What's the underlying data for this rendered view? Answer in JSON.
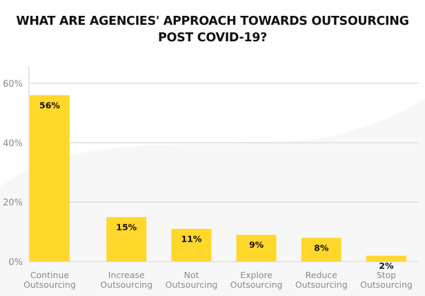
{
  "chart_data": {
    "type": "bar",
    "title": [
      "WHAT ARE AGENCIES' APPROACH TOWARDS OUTSOURCING",
      "POST COVID-19?"
    ],
    "xlabel": "",
    "ylabel": "",
    "categories": [
      [
        "Continue",
        "Outsourcing"
      ],
      [
        "Increase",
        "Outsourcing"
      ],
      [
        "Not",
        "Outsourcing"
      ],
      [
        "Explore",
        "Outsourcing"
      ],
      [
        "Reduce",
        "Outsourcing"
      ],
      [
        "Stop",
        "Outsourcing"
      ]
    ],
    "values": [
      56,
      15,
      11,
      9,
      8,
      2
    ],
    "data_labels": [
      "56%",
      "15%",
      "11%",
      "9%",
      "8%",
      "2%"
    ],
    "ylim": [
      0,
      60
    ],
    "yticks": [
      0,
      20,
      40,
      60
    ],
    "ytick_labels": [
      "0%",
      "20%",
      "40%",
      "60%"
    ],
    "grid": true,
    "legend": "none",
    "colors": {
      "bar": "#FFD82B",
      "grid": "#dddddd",
      "text": "#8a8a8a",
      "background_wave": "#f7f7f7"
    }
  }
}
